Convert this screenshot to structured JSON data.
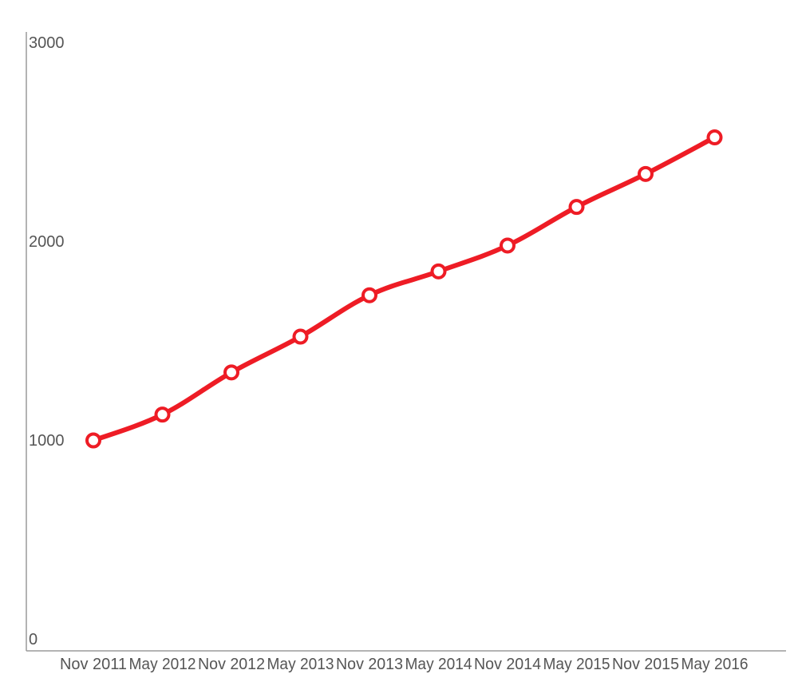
{
  "chart_data": {
    "type": "line",
    "title": "",
    "xlabel": "",
    "ylabel": "",
    "categories": [
      "Nov 2011",
      "May 2012",
      "Nov 2012",
      "May 2013",
      "Nov 2013",
      "May 2014",
      "Nov 2014",
      "May 2015",
      "Nov 2015",
      "May 2016"
    ],
    "series": [
      {
        "values": [
          998,
          1128,
          1340,
          1520,
          1728,
          1848,
          1978,
          2172,
          2338,
          2522
        ],
        "color": "#ee1c25"
      }
    ],
    "yticks": [
      0,
      1000,
      2000,
      3000
    ],
    "ylim": [
      0,
      3000
    ],
    "grid": false,
    "legend": "none"
  }
}
